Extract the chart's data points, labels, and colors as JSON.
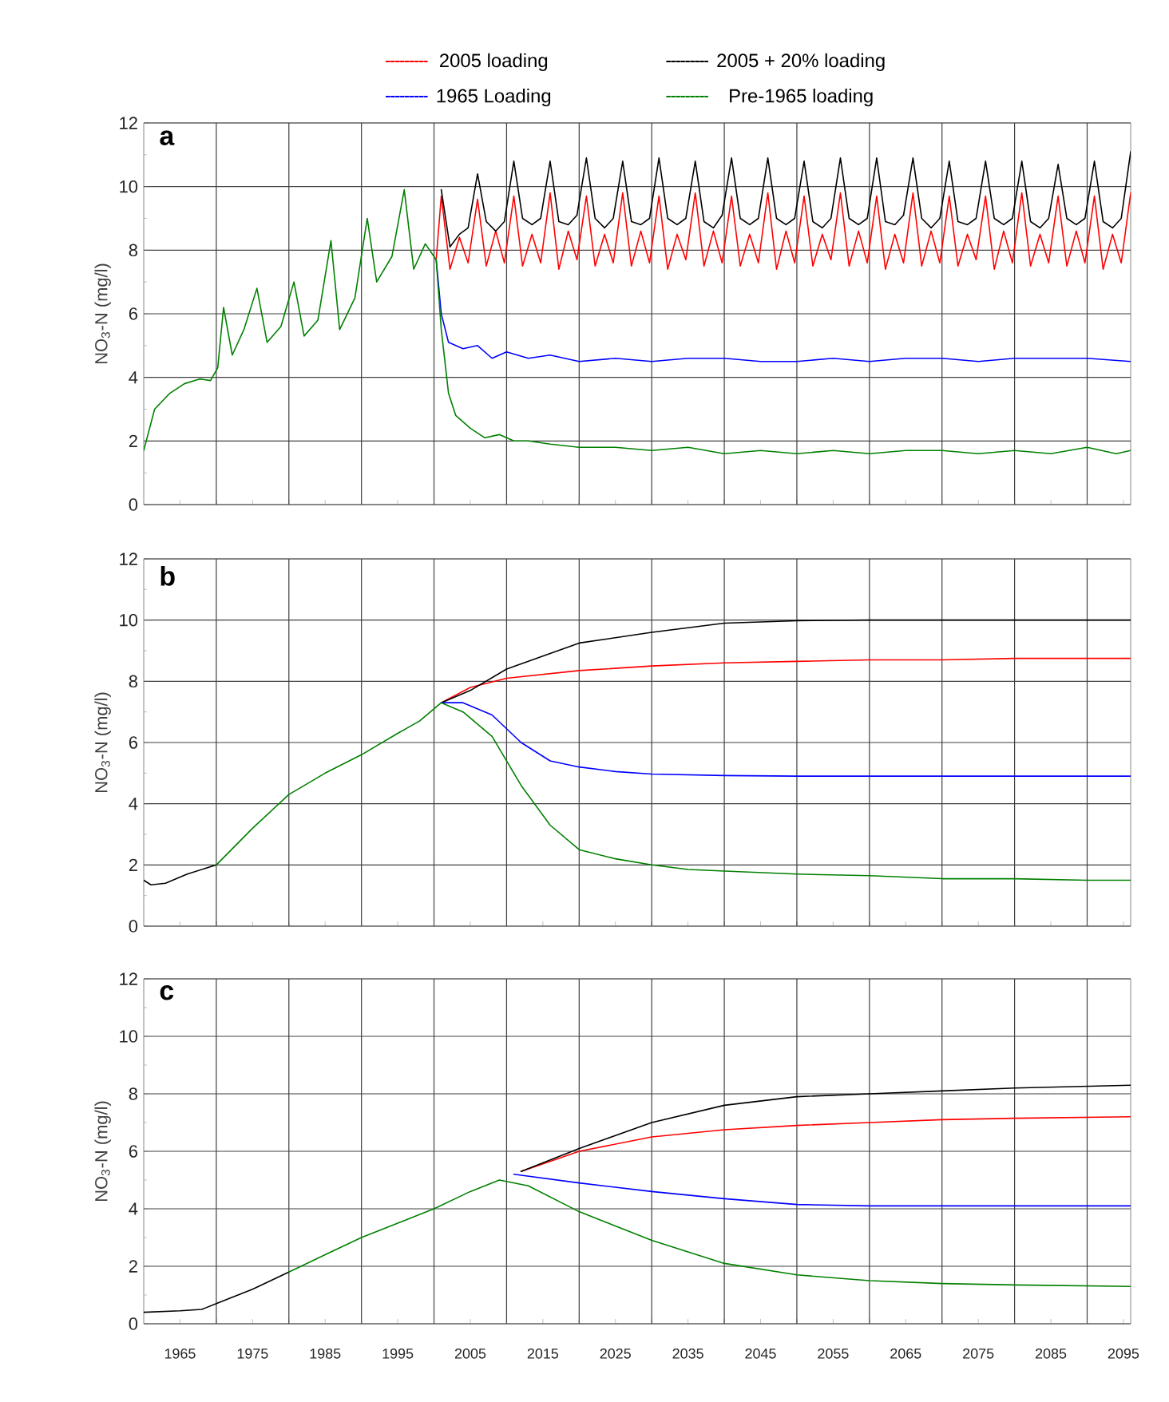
{
  "chart_data": [
    {
      "type": "line",
      "title": "a",
      "ylabel": "NO$_{3}$-N (mg/l)",
      "xlim": [
        1960,
        2096
      ],
      "ylim": [
        0,
        12
      ],
      "grid": true,
      "legend": "top",
      "tick_labels": "y",
      "xticks": [
        1965,
        {
          "value": 1970,
          "label": null
        },
        1975,
        {
          "value": 1980,
          "label": null
        },
        1985,
        {
          "value": 1990,
          "label": null
        },
        1995,
        {
          "value": 2000,
          "label": null
        },
        2005,
        {
          "value": 2010,
          "label": null
        },
        2015,
        {
          "value": 2020,
          "label": null
        },
        2025,
        {
          "value": 2030,
          "label": null
        },
        2035,
        {
          "value": 2040,
          "label": null
        },
        2045,
        {
          "value": 2050,
          "label": null
        },
        2055,
        {
          "value": 2060,
          "label": null
        },
        2065,
        {
          "value": 2070,
          "label": null
        },
        2075,
        {
          "value": 2080,
          "label": null
        },
        2085,
        {
          "value": 2090,
          "label": null
        },
        2095
      ],
      "yticks": [
        0,
        2,
        4,
        6,
        8,
        10,
        12
      ],
      "series": [
        {
          "name": "2005 loading",
          "color": "#ff0000",
          "x": [
            2000.3,
            2001,
            2002.2,
            2003.5,
            2004.7,
            2006,
            2007.2,
            2008.5,
            2009.7,
            2011,
            2012.2,
            2013.5,
            2014.7,
            2016,
            2017.2,
            2018.5,
            2019.7,
            2021,
            2022.2,
            2023.5,
            2024.7,
            2026,
            2027.2,
            2028.5,
            2029.7,
            2031,
            2032.2,
            2033.5,
            2034.7,
            2036,
            2037.2,
            2038.5,
            2039.7,
            2041,
            2042.2,
            2043.5,
            2044.7,
            2046,
            2047.2,
            2048.5,
            2049.7,
            2051,
            2052.2,
            2053.5,
            2054.7,
            2056,
            2057.2,
            2058.5,
            2059.7,
            2061,
            2062.2,
            2063.5,
            2064.7,
            2066,
            2067.2,
            2068.5,
            2069.7,
            2071,
            2072.2,
            2073.5,
            2074.7,
            2076,
            2077.2,
            2078.5,
            2079.7,
            2081,
            2082.2,
            2083.5,
            2084.7,
            2086,
            2087.2,
            2088.5,
            2089.7,
            2091,
            2092.2,
            2093.5,
            2094.7,
            2096
          ],
          "values": [
            7.7,
            9.7,
            7.4,
            8.4,
            7.6,
            9.6,
            7.5,
            8.6,
            7.6,
            9.7,
            7.5,
            8.5,
            7.6,
            9.8,
            7.4,
            8.6,
            7.7,
            9.7,
            7.5,
            8.5,
            7.6,
            9.8,
            7.5,
            8.6,
            7.6,
            9.7,
            7.4,
            8.5,
            7.7,
            9.8,
            7.5,
            8.6,
            7.6,
            9.7,
            7.5,
            8.5,
            7.6,
            9.8,
            7.4,
            8.6,
            7.6,
            9.7,
            7.5,
            8.5,
            7.7,
            9.8,
            7.5,
            8.6,
            7.6,
            9.7,
            7.4,
            8.5,
            7.6,
            9.8,
            7.5,
            8.6,
            7.6,
            9.7,
            7.5,
            8.5,
            7.7,
            9.7,
            7.4,
            8.6,
            7.6,
            9.8,
            7.5,
            8.5,
            7.6,
            9.7,
            7.5,
            8.6,
            7.6,
            9.7,
            7.4,
            8.5,
            7.6,
            9.8
          ]
        },
        {
          "name": "2005 + 20% loading",
          "color": "#000000",
          "x": [
            2001,
            2002.2,
            2003.5,
            2004.7,
            2006,
            2007.2,
            2008.5,
            2009.7,
            2011,
            2012.2,
            2013.5,
            2014.7,
            2016,
            2017.2,
            2018.5,
            2019.7,
            2021,
            2022.2,
            2023.5,
            2024.7,
            2026,
            2027.2,
            2028.5,
            2029.7,
            2031,
            2032.2,
            2033.5,
            2034.7,
            2036,
            2037.2,
            2038.5,
            2039.7,
            2041,
            2042.2,
            2043.5,
            2044.7,
            2046,
            2047.2,
            2048.5,
            2049.7,
            2051,
            2052.2,
            2053.5,
            2054.7,
            2056,
            2057.2,
            2058.5,
            2059.7,
            2061,
            2062.2,
            2063.5,
            2064.7,
            2066,
            2067.2,
            2068.5,
            2069.7,
            2071,
            2072.2,
            2073.5,
            2074.7,
            2076,
            2077.2,
            2078.5,
            2079.7,
            2081,
            2082.2,
            2083.5,
            2084.7,
            2086,
            2087.2,
            2088.5,
            2089.7,
            2091,
            2092.2,
            2093.5,
            2094.7,
            2096
          ],
          "values": [
            9.9,
            8.1,
            8.5,
            8.7,
            10.4,
            8.9,
            8.6,
            8.9,
            10.8,
            9.0,
            8.8,
            9.0,
            10.8,
            8.9,
            8.8,
            9.1,
            10.9,
            9.0,
            8.7,
            9.0,
            10.8,
            8.9,
            8.8,
            9.0,
            10.9,
            9.0,
            8.8,
            9.0,
            10.8,
            8.9,
            8.7,
            9.1,
            10.9,
            9.0,
            8.8,
            9.0,
            10.9,
            9.0,
            8.8,
            9.0,
            10.8,
            8.9,
            8.7,
            9.0,
            10.9,
            9.0,
            8.8,
            9.0,
            10.9,
            8.9,
            8.8,
            9.1,
            10.9,
            9.0,
            8.7,
            9.0,
            10.8,
            8.9,
            8.8,
            9.0,
            10.8,
            9.0,
            8.8,
            9.0,
            10.8,
            8.9,
            8.7,
            9.0,
            10.7,
            9.0,
            8.8,
            9.0,
            10.8,
            8.9,
            8.7,
            9.0,
            11.1
          ]
        },
        {
          "name": "1965 Loading",
          "color": "#0000ff",
          "x": [
            2000.3,
            2001,
            2002,
            2004,
            2006,
            2008,
            2010,
            2013,
            2016,
            2020,
            2025,
            2030,
            2035,
            2040,
            2045,
            2050,
            2055,
            2060,
            2065,
            2070,
            2075,
            2080,
            2085,
            2090,
            2096
          ],
          "values": [
            7.7,
            6.0,
            5.1,
            4.9,
            5.0,
            4.6,
            4.8,
            4.6,
            4.7,
            4.5,
            4.6,
            4.5,
            4.6,
            4.6,
            4.5,
            4.5,
            4.6,
            4.5,
            4.6,
            4.6,
            4.5,
            4.6,
            4.6,
            4.6,
            4.5
          ]
        },
        {
          "name": "Pre-1965 loading",
          "color": "#008000",
          "x": [
            1960,
            1961.5,
            1963.6,
            1965.6,
            1967.7,
            1969.2,
            1970.2,
            1971,
            1972.2,
            1973.8,
            1975.6,
            1977,
            1978.9,
            1980.7,
            1982.1,
            1984,
            1985.8,
            1987,
            1989.1,
            1990.8,
            1992.1,
            1994.2,
            1995.9,
            1997.2,
            1998.8,
            2000.3,
            2001,
            2002,
            2003,
            2005,
            2007,
            2009,
            2011,
            2013,
            2016,
            2020,
            2025,
            2030,
            2035,
            2040,
            2045,
            2050,
            2055,
            2060,
            2065,
            2070,
            2075,
            2080,
            2085,
            2090,
            2094,
            2096
          ],
          "values": [
            1.7,
            3.0,
            3.5,
            3.8,
            3.95,
            3.9,
            4.3,
            6.2,
            4.7,
            5.5,
            6.8,
            5.1,
            5.6,
            7.0,
            5.3,
            5.8,
            8.3,
            5.5,
            6.5,
            9.0,
            7.0,
            7.8,
            9.9,
            7.4,
            8.2,
            7.7,
            5.5,
            3.5,
            2.8,
            2.4,
            2.1,
            2.2,
            2.0,
            2.0,
            1.9,
            1.8,
            1.8,
            1.7,
            1.8,
            1.6,
            1.7,
            1.6,
            1.7,
            1.6,
            1.7,
            1.7,
            1.6,
            1.7,
            1.6,
            1.8,
            1.6,
            1.7
          ]
        }
      ]
    },
    {
      "type": "line",
      "title": "b",
      "ylabel": "NO$_{3}$-N (mg/l)",
      "xlim": [
        1960,
        2096
      ],
      "ylim": [
        0,
        12
      ],
      "grid": true,
      "tick_labels": "y",
      "xticks": [
        1965,
        {
          "value": 1970,
          "label": null
        },
        1975,
        {
          "value": 1980,
          "label": null
        },
        1985,
        {
          "value": 1990,
          "label": null
        },
        1995,
        {
          "value": 2000,
          "label": null
        },
        2005,
        {
          "value": 2010,
          "label": null
        },
        2015,
        {
          "value": 2020,
          "label": null
        },
        2025,
        {
          "value": 2030,
          "label": null
        },
        2035,
        {
          "value": 2040,
          "label": null
        },
        2045,
        {
          "value": 2050,
          "label": null
        },
        2055,
        {
          "value": 2060,
          "label": null
        },
        2065,
        {
          "value": 2070,
          "label": null
        },
        2075,
        {
          "value": 2080,
          "label": null
        },
        2085,
        {
          "value": 2090,
          "label": null
        },
        2095
      ],
      "yticks": [
        0,
        2,
        4,
        6,
        8,
        10,
        12
      ],
      "series": [
        {
          "color": "#ff0000",
          "x": [
            2001,
            2005,
            2010,
            2020,
            2030,
            2040,
            2050,
            2060,
            2070,
            2080,
            2096
          ],
          "values": [
            7.3,
            7.8,
            8.1,
            8.35,
            8.5,
            8.6,
            8.65,
            8.7,
            8.7,
            8.75,
            8.75
          ]
        },
        {
          "color": "#000000",
          "x": [
            1960,
            1961,
            1963,
            1966,
            1970,
            1975,
            2001,
            2005,
            2010,
            2020,
            2030,
            2040,
            2050,
            2060,
            2070,
            2080,
            2096
          ],
          "values": [
            1.5,
            1.35,
            1.4,
            1.7,
            2.0,
            null,
            7.3,
            7.7,
            8.4,
            9.25,
            9.6,
            9.9,
            9.98,
            10.0,
            10.0,
            10.0,
            10.0
          ]
        },
        {
          "color": "#0000ff",
          "x": [
            2001,
            2004,
            2008,
            2012,
            2016,
            2020,
            2025,
            2030,
            2040,
            2050,
            2096
          ],
          "values": [
            7.3,
            7.3,
            6.9,
            6.0,
            5.4,
            5.2,
            5.05,
            4.97,
            4.92,
            4.9,
            4.9
          ]
        },
        {
          "color": "#008000",
          "x": [
            1970,
            1975,
            1980,
            1985,
            1990,
            1995,
            1998,
            2001,
            2004,
            2008,
            2012,
            2016,
            2020,
            2025,
            2030,
            2035,
            2040,
            2050,
            2060,
            2070,
            2080,
            2090,
            2096
          ],
          "values": [
            2.0,
            3.2,
            4.3,
            5.0,
            5.6,
            6.3,
            6.7,
            7.3,
            7.0,
            6.2,
            4.6,
            3.3,
            2.5,
            2.2,
            2.0,
            1.85,
            1.8,
            1.7,
            1.65,
            1.55,
            1.55,
            1.5,
            1.5
          ]
        }
      ]
    },
    {
      "type": "line",
      "title": "c",
      "ylabel": "NO$_{3}$-N (mg/l)",
      "xlim": [
        1960,
        2096
      ],
      "ylim": [
        0,
        12
      ],
      "grid": true,
      "xticks": [
        1965,
        {
          "value": 1970,
          "label": null
        },
        1975,
        {
          "value": 1980,
          "label": null
        },
        1985,
        {
          "value": 1990,
          "label": null
        },
        1995,
        {
          "value": 2000,
          "label": null
        },
        2005,
        {
          "value": 2010,
          "label": null
        },
        2015,
        {
          "value": 2020,
          "label": null
        },
        2025,
        {
          "value": 2030,
          "label": null
        },
        2035,
        {
          "value": 2040,
          "label": null
        },
        2045,
        {
          "value": 2050,
          "label": null
        },
        2055,
        {
          "value": 2060,
          "label": null
        },
        2065,
        {
          "value": 2070,
          "label": null
        },
        2075,
        {
          "value": 2080,
          "label": null
        },
        2085,
        {
          "value": 2090,
          "label": null
        },
        2095
      ],
      "yticks": [
        0,
        2,
        4,
        6,
        8,
        10,
        12
      ],
      "series": [
        {
          "color": "#ff0000",
          "x": [
            2012,
            2020,
            2030,
            2040,
            2050,
            2060,
            2070,
            2080,
            2096
          ],
          "values": [
            5.3,
            6.0,
            6.5,
            6.75,
            6.9,
            7.0,
            7.1,
            7.15,
            7.2
          ]
        },
        {
          "color": "#000000",
          "x": [
            1960,
            1965,
            1968,
            1970,
            1975,
            1980,
            1985,
            2012,
            2020,
            2030,
            2040,
            2050,
            2060,
            2070,
            2080,
            2096
          ],
          "values": [
            0.4,
            0.45,
            0.5,
            0.7,
            1.2,
            1.8,
            null,
            5.3,
            6.1,
            7.0,
            7.6,
            7.9,
            8.0,
            8.1,
            8.2,
            8.3
          ]
        },
        {
          "color": "#0000ff",
          "x": [
            2011,
            2020,
            2030,
            2040,
            2050,
            2060,
            2096
          ],
          "values": [
            5.2,
            4.9,
            4.6,
            4.35,
            4.15,
            4.1,
            4.1
          ]
        },
        {
          "color": "#008000",
          "x": [
            1980,
            1985,
            1990,
            1995,
            2000,
            2005,
            2009,
            2013,
            2020,
            2030,
            2040,
            2050,
            2060,
            2070,
            2080,
            2096
          ],
          "values": [
            1.8,
            2.4,
            3.0,
            3.5,
            4.0,
            4.6,
            5.0,
            4.8,
            3.9,
            2.9,
            2.1,
            1.7,
            1.5,
            1.4,
            1.35,
            1.3
          ]
        }
      ]
    }
  ]
}
